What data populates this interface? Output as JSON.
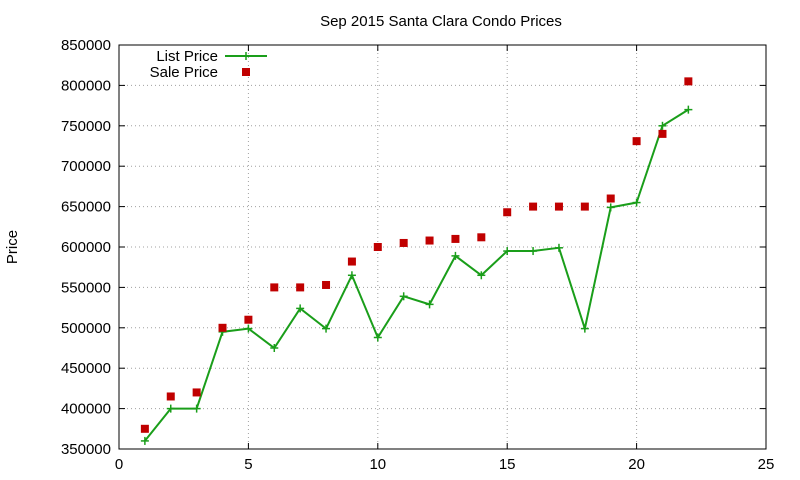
{
  "chart_data": {
    "type": "line",
    "title": "Sep 2015 Santa Clara Condo Prices",
    "xlabel": "",
    "ylabel": "Price",
    "xlim": [
      0,
      25
    ],
    "ylim": [
      350000,
      850000
    ],
    "xticks": [
      0,
      5,
      10,
      15,
      20,
      25
    ],
    "yticks": [
      350000,
      400000,
      450000,
      500000,
      550000,
      600000,
      650000,
      700000,
      750000,
      800000,
      850000
    ],
    "grid": true,
    "legend": "top-left",
    "x": [
      1,
      2,
      3,
      4,
      5,
      6,
      7,
      8,
      9,
      10,
      11,
      12,
      13,
      14,
      15,
      16,
      17,
      18,
      19,
      20,
      21,
      22
    ],
    "series": [
      {
        "name": "List Price",
        "style": "linespoints",
        "marker": "plus",
        "color": "#1a9e1a",
        "values": [
          360000,
          400000,
          400000,
          495000,
          499000,
          475000,
          524000,
          499000,
          565000,
          488000,
          539000,
          529000,
          589000,
          565000,
          595000,
          595000,
          599000,
          499000,
          649000,
          655000,
          750000,
          770000
        ]
      },
      {
        "name": "Sale Price",
        "style": "points",
        "marker": "square",
        "color": "#c00000",
        "values": [
          375000,
          415000,
          420000,
          500000,
          510000,
          550000,
          550000,
          553000,
          582000,
          600000,
          605000,
          608000,
          610000,
          612000,
          643000,
          650000,
          650000,
          650000,
          660000,
          731000,
          740000,
          805000
        ]
      }
    ]
  }
}
